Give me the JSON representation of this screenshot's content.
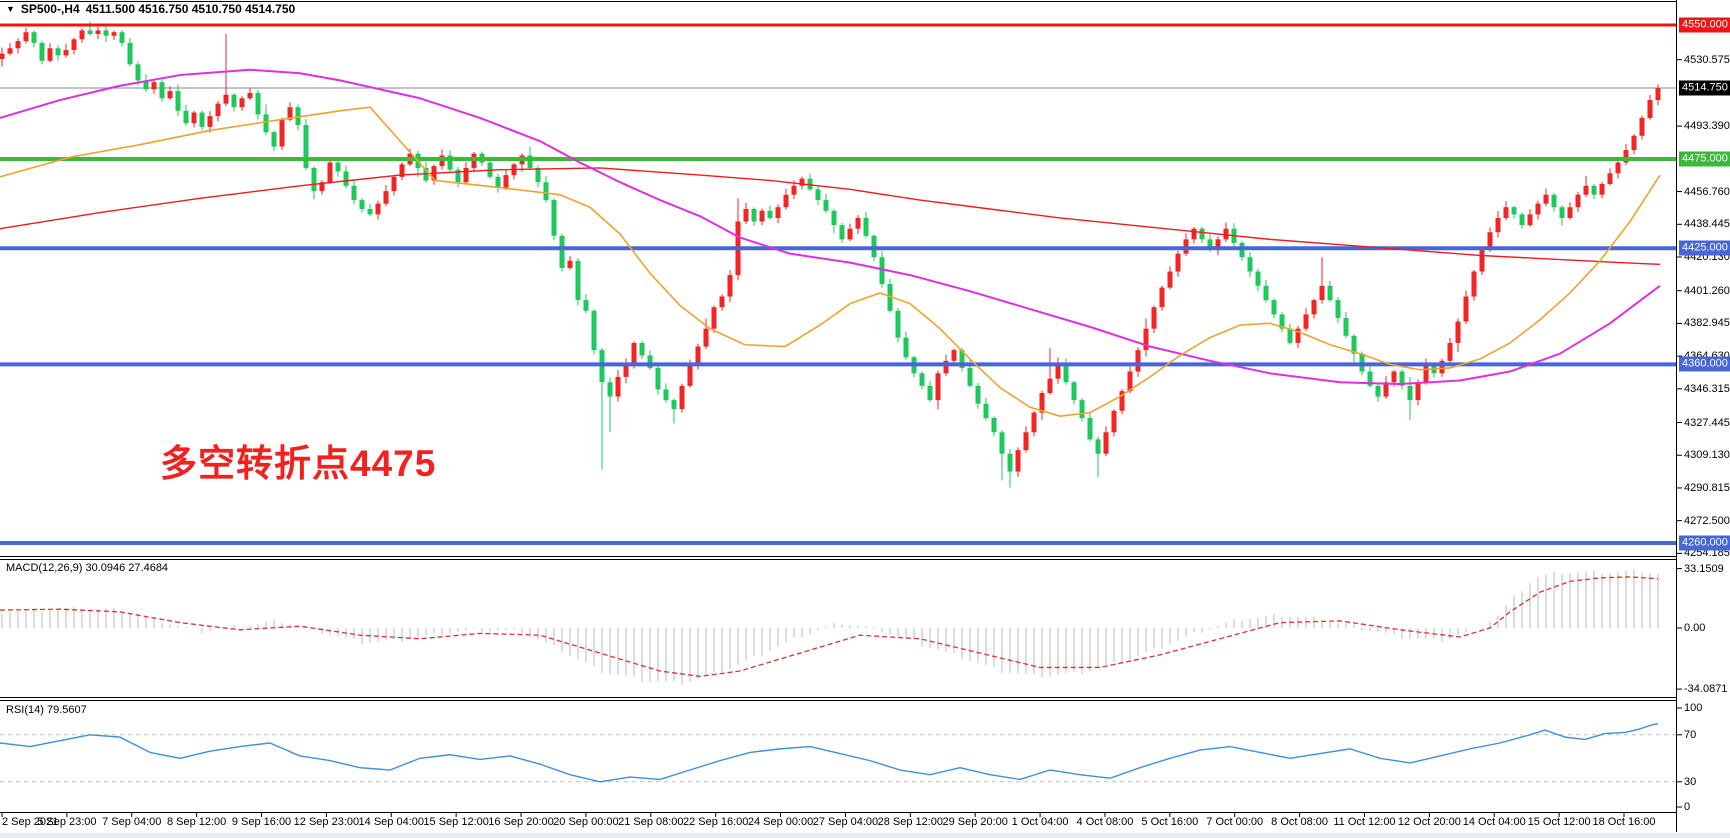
{
  "title": {
    "arrow": "▼",
    "symbol": "SP500-,H4",
    "ohlc": "4511.500 4516.750 4510.750 4514.750"
  },
  "annotation": {
    "text": "多空转折点4475",
    "color": "#f32020"
  },
  "indicators": {
    "macd_label": "MACD(12,26,9) 30.0946 27.4684",
    "rsi_label": "RSI(14) 79.5607"
  },
  "price_axis": {
    "ticks": [
      {
        "label": "4530.575",
        "price": 4530.575
      },
      {
        "label": "4493.390",
        "price": 4493.39
      },
      {
        "label": "4456.760",
        "price": 4456.76
      },
      {
        "label": "4438.445",
        "price": 4438.445
      },
      {
        "label": "4420.130",
        "price": 4420.13
      },
      {
        "label": "4401.260",
        "price": 4401.26
      },
      {
        "label": "4382.945",
        "price": 4382.945
      },
      {
        "label": "4364.630",
        "price": 4364.63
      },
      {
        "label": "4346.315",
        "price": 4346.315
      },
      {
        "label": "4327.445",
        "price": 4327.445
      },
      {
        "label": "4309.130",
        "price": 4309.13
      },
      {
        "label": "4290.815",
        "price": 4290.815
      },
      {
        "label": "4272.500",
        "price": 4272.5
      },
      {
        "label": "4254.185",
        "price": 4254.185
      }
    ],
    "badges": [
      {
        "label": "4550.000",
        "price": 4550,
        "bg": "#f01414"
      },
      {
        "label": "4475.000",
        "price": 4475,
        "bg": "#3cb93c"
      },
      {
        "label": "4425.000",
        "price": 4425,
        "bg": "#4766d8"
      },
      {
        "label": "4360.000",
        "price": 4360,
        "bg": "#4766d8"
      },
      {
        "label": "4260.000",
        "price": 4260,
        "bg": "#4766d8"
      }
    ],
    "current_badge": {
      "label": "4514.750",
      "price": 4514.75,
      "bg": "#000000"
    }
  },
  "macd_axis": [
    {
      "label": "33.1509",
      "value": 33.1509
    },
    {
      "label": "0.00",
      "value": 0
    },
    {
      "label": "-34.0871",
      "value": -34.0871
    }
  ],
  "rsi_axis": [
    {
      "label": "100",
      "value": 100
    },
    {
      "label": "70",
      "value": 70
    },
    {
      "label": "30",
      "value": 30
    },
    {
      "label": "0",
      "value": 0
    }
  ],
  "time_axis": [
    "2 Sep 2021",
    "5 Sep 23:00",
    "7 Sep 04:00",
    "8 Sep 12:00",
    "9 Sep 16:00",
    "12 Sep 23:00",
    "14 Sep 04:00",
    "15 Sep 12:00",
    "16 Sep 20:00",
    "20 Sep 00:00",
    "21 Sep 08:00",
    "22 Sep 16:00",
    "24 Sep 00:00",
    "27 Sep 04:00",
    "28 Sep 12:00",
    "29 Sep 20:00",
    "1 Oct 04:00",
    "4 Oct 08:00",
    "5 Oct 16:00",
    "7 Oct 00:00",
    "8 Oct 08:00",
    "11 Oct 12:00",
    "12 Oct 20:00",
    "14 Oct 04:00",
    "15 Oct 12:00",
    "18 Oct 16:00"
  ],
  "chart_data": {
    "type": "candlestick",
    "symbol": "SP500-",
    "timeframe": "H4",
    "last_bar": {
      "open": 4511.5,
      "high": 4516.75,
      "low": 4510.75,
      "close": 4514.75
    },
    "first_open": 4531,
    "closes": [
      4534,
      4537,
      4541,
      4546,
      4540,
      4530,
      4537,
      4533,
      4536,
      4542,
      4547,
      4545,
      4547,
      4544,
      4546,
      4540,
      4528,
      4519,
      4514,
      4518,
      4509,
      4513,
      4502,
      4495,
      4501,
      4493,
      4499,
      4506,
      4511,
      4504,
      4509,
      4512,
      4500,
      4490,
      4482,
      4497,
      4504,
      4494,
      4470,
      4457,
      4462,
      4473,
      4468,
      4460,
      4452,
      4447,
      4444,
      4450,
      4457,
      4465,
      4472,
      4478,
      4470,
      4463,
      4471,
      4477,
      4469,
      4462,
      4470,
      4478,
      4473,
      4465,
      4459,
      4466,
      4472,
      4477,
      4470,
      4462,
      4452,
      4432,
      4414,
      4418,
      4396,
      4390,
      4368,
      4350,
      4342,
      4353,
      4360,
      4372,
      4365,
      4358,
      4346,
      4340,
      4335,
      4348,
      4360,
      4370,
      4380,
      4392,
      4398,
      4410,
      4440,
      4447,
      4440,
      4446,
      4442,
      4448,
      4455,
      4460,
      4464,
      4458,
      4452,
      4446,
      4438,
      4430,
      4436,
      4442,
      4432,
      4420,
      4405,
      4390,
      4375,
      4364,
      4355,
      4348,
      4340,
      4355,
      4362,
      4368,
      4358,
      4348,
      4338,
      4330,
      4322,
      4310,
      4300,
      4312,
      4322,
      4333,
      4344,
      4352,
      4360,
      4350,
      4340,
      4330,
      4318,
      4310,
      4322,
      4334,
      4345,
      4356,
      4368,
      4380,
      4392,
      4403,
      4412,
      4422,
      4430,
      4436,
      4430,
      4424,
      4430,
      4436,
      4428,
      4420,
      4412,
      4404,
      4396,
      4388,
      4380,
      4372,
      4380,
      4388,
      4396,
      4404,
      4396,
      4386,
      4376,
      4366,
      4356,
      4348,
      4342,
      4350,
      4356,
      4348,
      4340,
      4350,
      4360,
      4355,
      4362,
      4372,
      4384,
      4398,
      4412,
      4424,
      4434,
      4442,
      4448,
      4444,
      4438,
      4444,
      4450,
      4455,
      4448,
      4442,
      4448,
      4455,
      4460,
      4455,
      4461,
      4467,
      4473,
      4480,
      4488,
      4498,
      4508,
      4514.75
    ],
    "wick_overrides": {
      "3": {
        "high": 4548.5
      },
      "12": {
        "high": 4549
      },
      "28": {
        "high": 4545
      },
      "75": {
        "low": 4301
      },
      "76": {
        "low": 4322
      },
      "84": {
        "low": 4327
      },
      "92": {
        "high": 4453
      },
      "125": {
        "low": 4295
      },
      "126": {
        "low": 4291
      },
      "131": {
        "high": 4369
      },
      "137": {
        "low": 4297
      },
      "165": {
        "high": 4420
      },
      "176": {
        "low": 4329
      },
      "207": {
        "high": 4516.75
      }
    },
    "hlines": [
      {
        "price": 4550,
        "color": "#f01414",
        "w": 3
      },
      {
        "price": 4475,
        "color": "#3cb93c",
        "w": 4
      },
      {
        "price": 4425,
        "color": "#4766d8",
        "w": 4
      },
      {
        "price": 4360,
        "color": "#4766d8",
        "w": 4
      },
      {
        "price": 4260,
        "color": "#4766d8",
        "w": 4
      }
    ],
    "current_price_line": {
      "price": 4514.75,
      "color": "#7f8a94"
    },
    "ma": {
      "red": [
        [
          0,
          4436
        ],
        [
          100,
          4445
        ],
        [
          200,
          4453
        ],
        [
          300,
          4460
        ],
        [
          400,
          4466
        ],
        [
          500,
          4469
        ],
        [
          600,
          4470
        ],
        [
          700,
          4466
        ],
        [
          770,
          4463
        ],
        [
          850,
          4458
        ],
        [
          920,
          4452
        ],
        [
          990,
          4447
        ],
        [
          1060,
          4442
        ],
        [
          1130,
          4438
        ],
        [
          1200,
          4434
        ],
        [
          1270,
          4430
        ],
        [
          1340,
          4427
        ],
        [
          1410,
          4424
        ],
        [
          1480,
          4421
        ],
        [
          1550,
          4419
        ],
        [
          1620,
          4417
        ],
        [
          1660,
          4416
        ]
      ],
      "magenta": [
        [
          0,
          4498
        ],
        [
          60,
          4508
        ],
        [
          120,
          4516
        ],
        [
          180,
          4522
        ],
        [
          250,
          4525
        ],
        [
          300,
          4523
        ],
        [
          340,
          4519
        ],
        [
          420,
          4509
        ],
        [
          480,
          4498
        ],
        [
          540,
          4485
        ],
        [
          580,
          4473
        ],
        [
          620,
          4462
        ],
        [
          660,
          4452
        ],
        [
          700,
          4443
        ],
        [
          740,
          4431
        ],
        [
          790,
          4422
        ],
        [
          850,
          4417
        ],
        [
          910,
          4410
        ],
        [
          970,
          4401
        ],
        [
          1030,
          4391
        ],
        [
          1090,
          4381
        ],
        [
          1150,
          4370
        ],
        [
          1210,
          4362
        ],
        [
          1270,
          4355
        ],
        [
          1340,
          4350
        ],
        [
          1400,
          4349
        ],
        [
          1460,
          4351
        ],
        [
          1510,
          4356
        ],
        [
          1560,
          4366
        ],
        [
          1610,
          4383
        ],
        [
          1660,
          4404
        ]
      ],
      "orange": [
        [
          0,
          4465
        ],
        [
          70,
          4476
        ],
        [
          140,
          4483
        ],
        [
          210,
          4491
        ],
        [
          280,
          4497
        ],
        [
          340,
          4502
        ],
        [
          370,
          4504
        ],
        [
          405,
          4482
        ],
        [
          435,
          4463
        ],
        [
          500,
          4459
        ],
        [
          560,
          4455
        ],
        [
          590,
          4448
        ],
        [
          620,
          4433
        ],
        [
          650,
          4411
        ],
        [
          680,
          4393
        ],
        [
          710,
          4380
        ],
        [
          745,
          4371
        ],
        [
          785,
          4370
        ],
        [
          820,
          4382
        ],
        [
          850,
          4394
        ],
        [
          880,
          4400
        ],
        [
          910,
          4394
        ],
        [
          940,
          4380
        ],
        [
          970,
          4363
        ],
        [
          1000,
          4347
        ],
        [
          1030,
          4336
        ],
        [
          1060,
          4331
        ],
        [
          1090,
          4333
        ],
        [
          1120,
          4342
        ],
        [
          1150,
          4353
        ],
        [
          1180,
          4365
        ],
        [
          1210,
          4375
        ],
        [
          1240,
          4382
        ],
        [
          1270,
          4383
        ],
        [
          1300,
          4378
        ],
        [
          1330,
          4371
        ],
        [
          1360,
          4366
        ],
        [
          1390,
          4360
        ],
        [
          1420,
          4357
        ],
        [
          1450,
          4358
        ],
        [
          1480,
          4363
        ],
        [
          1510,
          4372
        ],
        [
          1540,
          4385
        ],
        [
          1570,
          4400
        ],
        [
          1600,
          4418
        ],
        [
          1630,
          4440
        ],
        [
          1660,
          4466
        ]
      ]
    },
    "macd": {
      "hist": [
        [
          0,
          9
        ],
        [
          40,
          10
        ],
        [
          80,
          11
        ],
        [
          120,
          10
        ],
        [
          160,
          4
        ],
        [
          200,
          -2
        ],
        [
          240,
          1
        ],
        [
          280,
          4
        ],
        [
          320,
          -2
        ],
        [
          360,
          -8
        ],
        [
          400,
          -7
        ],
        [
          440,
          -3
        ],
        [
          480,
          -1
        ],
        [
          520,
          -2
        ],
        [
          560,
          -12
        ],
        [
          600,
          -24
        ],
        [
          640,
          -29
        ],
        [
          680,
          -31
        ],
        [
          720,
          -25
        ],
        [
          760,
          -15
        ],
        [
          800,
          -5
        ],
        [
          840,
          3
        ],
        [
          880,
          -1
        ],
        [
          920,
          -9
        ],
        [
          960,
          -16
        ],
        [
          1000,
          -24
        ],
        [
          1040,
          -27
        ],
        [
          1080,
          -25
        ],
        [
          1120,
          -19
        ],
        [
          1160,
          -11
        ],
        [
          1200,
          -2
        ],
        [
          1240,
          5
        ],
        [
          1280,
          7
        ],
        [
          1320,
          5
        ],
        [
          1360,
          0
        ],
        [
          1400,
          -5
        ],
        [
          1440,
          -7
        ],
        [
          1470,
          -2
        ],
        [
          1495,
          5
        ],
        [
          1515,
          18
        ],
        [
          1535,
          28
        ],
        [
          1560,
          31
        ],
        [
          1600,
          31
        ],
        [
          1640,
          32
        ],
        [
          1658,
          30.1
        ]
      ],
      "signal": [
        [
          0,
          10
        ],
        [
          60,
          10.5
        ],
        [
          120,
          9
        ],
        [
          180,
          3
        ],
        [
          240,
          -1
        ],
        [
          300,
          1
        ],
        [
          360,
          -4
        ],
        [
          420,
          -6
        ],
        [
          480,
          -3
        ],
        [
          540,
          -4
        ],
        [
          600,
          -14
        ],
        [
          660,
          -24
        ],
        [
          700,
          -27
        ],
        [
          740,
          -24
        ],
        [
          800,
          -14
        ],
        [
          860,
          -4
        ],
        [
          920,
          -6
        ],
        [
          980,
          -14
        ],
        [
          1040,
          -22
        ],
        [
          1100,
          -22
        ],
        [
          1160,
          -15
        ],
        [
          1220,
          -6
        ],
        [
          1280,
          3
        ],
        [
          1340,
          4
        ],
        [
          1400,
          -1
        ],
        [
          1460,
          -5
        ],
        [
          1490,
          0
        ],
        [
          1510,
          9
        ],
        [
          1540,
          20
        ],
        [
          1570,
          26
        ],
        [
          1600,
          28
        ],
        [
          1630,
          28.5
        ],
        [
          1658,
          27.47
        ]
      ]
    },
    "rsi": [
      [
        0,
        63
      ],
      [
        30,
        60
      ],
      [
        60,
        65
      ],
      [
        90,
        70
      ],
      [
        120,
        68
      ],
      [
        150,
        55
      ],
      [
        180,
        50
      ],
      [
        210,
        56
      ],
      [
        240,
        60
      ],
      [
        270,
        63
      ],
      [
        300,
        52
      ],
      [
        330,
        48
      ],
      [
        360,
        42
      ],
      [
        390,
        40
      ],
      [
        420,
        50
      ],
      [
        450,
        53
      ],
      [
        480,
        49
      ],
      [
        510,
        52
      ],
      [
        540,
        45
      ],
      [
        570,
        36
      ],
      [
        600,
        30
      ],
      [
        630,
        34
      ],
      [
        660,
        32
      ],
      [
        690,
        40
      ],
      [
        720,
        48
      ],
      [
        750,
        55
      ],
      [
        780,
        58
      ],
      [
        810,
        60
      ],
      [
        840,
        54
      ],
      [
        870,
        48
      ],
      [
        900,
        40
      ],
      [
        930,
        36
      ],
      [
        960,
        42
      ],
      [
        990,
        36
      ],
      [
        1020,
        32
      ],
      [
        1050,
        40
      ],
      [
        1080,
        36
      ],
      [
        1110,
        33
      ],
      [
        1140,
        42
      ],
      [
        1170,
        50
      ],
      [
        1200,
        57
      ],
      [
        1230,
        60
      ],
      [
        1260,
        55
      ],
      [
        1290,
        50
      ],
      [
        1320,
        54
      ],
      [
        1350,
        58
      ],
      [
        1380,
        50
      ],
      [
        1410,
        46
      ],
      [
        1440,
        52
      ],
      [
        1470,
        58
      ],
      [
        1500,
        63
      ],
      [
        1530,
        70
      ],
      [
        1545,
        74
      ],
      [
        1565,
        68
      ],
      [
        1585,
        66
      ],
      [
        1605,
        71
      ],
      [
        1625,
        72
      ],
      [
        1640,
        75
      ],
      [
        1650,
        78
      ],
      [
        1658,
        79.56
      ]
    ],
    "rsi_levels": [
      70,
      30
    ],
    "colors": {
      "bull": "#f22424",
      "bear": "#1ec95c",
      "ma_red": "#ee1c1c",
      "ma_magenta": "#e02ee0",
      "ma_orange": "#eea32e",
      "macd_hist": "#c6c6c6",
      "macd_signal": "#e03030",
      "rsi_line": "#3f8fdd",
      "level_dash": "#bfbfbf",
      "border": "#000000"
    }
  }
}
